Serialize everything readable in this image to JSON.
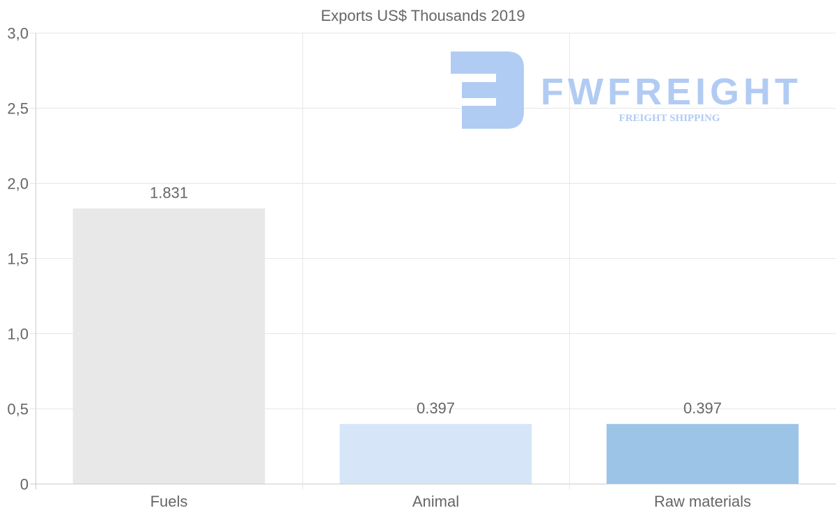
{
  "chart_data": {
    "type": "bar",
    "title": "Exports US$ Thousands 2019",
    "categories": [
      "Fuels",
      "Animal",
      "Raw materials"
    ],
    "values": [
      1.831,
      0.397,
      0.397
    ],
    "value_labels": [
      "1.831",
      "0.397",
      "0.397"
    ],
    "bar_colors": [
      "#e8e8e8",
      "#d6e6f8",
      "#9cc4e6"
    ],
    "xlabel": "",
    "ylabel": "",
    "ylim": [
      0,
      3.0
    ],
    "yticks": [
      0,
      0.5,
      1.0,
      1.5,
      2.0,
      2.5,
      3.0
    ],
    "ytick_labels": [
      "0",
      "0,5",
      "1,0",
      "1,5",
      "2,0",
      "2,5",
      "3,0"
    ],
    "grid": true,
    "legend": "none"
  },
  "watermark": {
    "brand": "FWFREIGHT",
    "tagline": "FREIGHT SHIPPING",
    "color": "#a9c6f2"
  }
}
